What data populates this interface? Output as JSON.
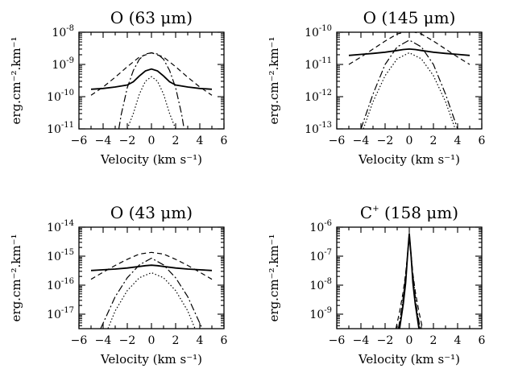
{
  "chart_data": [
    {
      "type": "line",
      "title_main": "O",
      "title_line": "(63 μm)",
      "ylabel": "erg.cm⁻².km⁻¹",
      "xlabel": "Velocity (km s⁻¹)",
      "xlim": [
        -6,
        6
      ],
      "ylog": true,
      "ylim_exp": [
        -11,
        -8
      ],
      "xticks": [
        -6,
        -4,
        -2,
        0,
        2,
        4,
        6
      ],
      "yticks": [
        {
          "b": "10",
          "e": "-8"
        },
        {
          "b": "10",
          "e": "-9"
        },
        {
          "b": "10",
          "e": "-10"
        },
        {
          "b": "10",
          "e": "-11"
        }
      ],
      "series": [
        {
          "style": "solid",
          "x": [
            -5,
            -4,
            -3,
            -2,
            -1.5,
            -1,
            -0.5,
            0,
            0.5,
            1,
            1.5,
            2,
            3,
            4,
            5
          ],
          "y": [
            1.7e-10,
            1.8e-10,
            2e-10,
            2.3e-10,
            2.9e-10,
            4.4e-10,
            6.3e-10,
            7.2e-10,
            6.3e-10,
            4.4e-10,
            2.9e-10,
            2.3e-10,
            2e-10,
            1.8e-10,
            1.7e-10
          ]
        },
        {
          "style": "dashed",
          "x": [
            -5,
            -4,
            -3,
            -2,
            -1,
            0,
            1,
            2,
            3,
            4,
            5
          ],
          "y": [
            1.1e-10,
            2e-10,
            4e-10,
            8.5e-10,
            1.7e-09,
            2.3e-09,
            1.7e-09,
            8.5e-10,
            4e-10,
            2e-10,
            1.1e-10
          ]
        },
        {
          "style": "dashdot",
          "x": [
            -2.7,
            -2.5,
            -2,
            -1.5,
            -1,
            -0.5,
            0,
            0.5,
            1,
            1.5,
            2,
            2.5,
            2.7
          ],
          "y": [
            1e-11,
            2.8e-11,
            1.9e-10,
            6.5e-10,
            1.45e-09,
            2.1e-09,
            2.3e-09,
            2.1e-09,
            1.45e-09,
            6.5e-10,
            1.9e-10,
            2.8e-11,
            1e-11
          ]
        },
        {
          "style": "dotted",
          "x": [
            -2,
            -1.5,
            -1,
            -0.5,
            0,
            0.5,
            1,
            1.5,
            2
          ],
          "y": [
            1e-11,
            3e-11,
            1.2e-10,
            3e-10,
            4.2e-10,
            3e-10,
            1.2e-10,
            3e-11,
            1e-11
          ]
        }
      ]
    },
    {
      "type": "line",
      "title_main": "O",
      "title_line": "(145 μm)",
      "ylabel": "erg.cm⁻².km⁻¹",
      "xlabel": "Velocity (km s⁻¹)",
      "xlim": [
        -6,
        6
      ],
      "ylog": true,
      "ylim_exp": [
        -13,
        -10
      ],
      "xticks": [
        -6,
        -4,
        -2,
        0,
        2,
        4,
        6
      ],
      "yticks": [
        {
          "b": "10",
          "e": "-10"
        },
        {
          "b": "10",
          "e": "-11"
        },
        {
          "b": "10",
          "e": "-12"
        },
        {
          "b": "10",
          "e": "-13"
        }
      ],
      "series": [
        {
          "style": "solid",
          "x": [
            -5,
            -4,
            -3,
            -2,
            -1,
            -0.5,
            0,
            0.5,
            1,
            2,
            3,
            4,
            5
          ],
          "y": [
            1.9e-11,
            2.05e-11,
            2.2e-11,
            2.4e-11,
            2.7e-11,
            2.9e-11,
            3e-11,
            2.9e-11,
            2.7e-11,
            2.4e-11,
            2.2e-11,
            2.05e-11,
            1.9e-11
          ]
        },
        {
          "style": "dashed",
          "x": [
            -5,
            -4,
            -3,
            -2,
            -1,
            0,
            1,
            2,
            3,
            4,
            5
          ],
          "y": [
            1e-11,
            1.7e-11,
            3e-11,
            5.3e-11,
            8.8e-11,
            1.1e-10,
            8.8e-11,
            5.3e-11,
            3e-11,
            1.7e-11,
            1e-11
          ]
        },
        {
          "style": "dashdot",
          "x": [
            -4,
            -3,
            -2,
            -1,
            0,
            1,
            2,
            3,
            4
          ],
          "y": [
            1e-13,
            1.2e-12,
            1e-11,
            3.5e-11,
            5.7e-11,
            3.5e-11,
            1e-11,
            1.2e-12,
            1e-13
          ]
        },
        {
          "style": "dotted",
          "x": [
            -3.8,
            -3,
            -2,
            -1,
            0,
            1,
            2,
            3,
            3.8
          ],
          "y": [
            1e-13,
            7e-13,
            4.5e-12,
            1.5e-11,
            2.3e-11,
            1.5e-11,
            4.5e-12,
            7e-13,
            1e-13
          ]
        }
      ]
    },
    {
      "type": "line",
      "title_main": "O",
      "title_line": "(43 μm)",
      "ylabel": "erg.cm⁻².km⁻¹",
      "xlabel": "Velocity (km s⁻¹)",
      "xlim": [
        -6,
        6
      ],
      "ylog": true,
      "ylim_exp": [
        -17.5,
        -14
      ],
      "xticks": [
        -6,
        -4,
        -2,
        0,
        2,
        4,
        6
      ],
      "yticks": [
        {
          "b": "10",
          "e": "-14"
        },
        {
          "b": "10",
          "e": "-15"
        },
        {
          "b": "10",
          "e": "-16"
        },
        {
          "b": "10",
          "e": "-17"
        }
      ],
      "series": [
        {
          "style": "solid",
          "x": [
            -5,
            -4,
            -3,
            -2,
            -1,
            -0.5,
            0,
            0.5,
            1,
            2,
            3,
            4,
            5
          ],
          "y": [
            3.2e-16,
            3.4e-16,
            3.6e-16,
            3.9e-16,
            4.4e-16,
            4.7e-16,
            4.9e-16,
            4.7e-16,
            4.4e-16,
            3.9e-16,
            3.6e-16,
            3.4e-16,
            3.2e-16
          ]
        },
        {
          "style": "dashed",
          "x": [
            -5,
            -4,
            -3,
            -2,
            -1,
            0,
            1,
            2,
            3,
            4,
            5
          ],
          "y": [
            1.6e-16,
            2.8e-16,
            4.8e-16,
            7.8e-16,
            1.18e-15,
            1.35e-15,
            1.18e-15,
            7.8e-16,
            4.8e-16,
            2.8e-16,
            1.6e-16
          ]
        },
        {
          "style": "dashdot",
          "x": [
            -4.2,
            -3,
            -2,
            -1,
            0,
            1,
            2,
            3,
            4.2
          ],
          "y": [
            3.2e-18,
            4e-17,
            1.8e-16,
            5e-16,
            8.5e-16,
            5e-16,
            1.8e-16,
            4e-17,
            3.2e-18
          ]
        },
        {
          "style": "dotted",
          "x": [
            -3.6,
            -3,
            -2,
            -1,
            0,
            1,
            2,
            3,
            3.6
          ],
          "y": [
            3.2e-18,
            1.3e-17,
            6.5e-17,
            1.8e-16,
            2.7e-16,
            1.8e-16,
            6.5e-17,
            1.3e-17,
            3.2e-18
          ]
        }
      ]
    },
    {
      "type": "line",
      "title_main": "C",
      "title_sup": "+",
      "title_line": "(158 μm)",
      "ylabel": "erg.cm⁻².km⁻¹",
      "xlabel": "Velocity (km s⁻¹)",
      "xlim": [
        -6,
        6
      ],
      "ylog": true,
      "ylim_exp": [
        -9.5,
        -6
      ],
      "xticks": [
        -6,
        -4,
        -2,
        0,
        2,
        4,
        6
      ],
      "yticks": [
        {
          "b": "10",
          "e": "-6"
        },
        {
          "b": "10",
          "e": "-7"
        },
        {
          "b": "10",
          "e": "-8"
        },
        {
          "b": "10",
          "e": "-9"
        }
      ],
      "series": [
        {
          "style": "solid",
          "x": [
            -0.8,
            -0.5,
            -0.3,
            -0.15,
            0,
            0.15,
            0.3,
            0.5,
            0.8
          ],
          "y": [
            3.2e-10,
            2.2e-09,
            1.2e-08,
            1e-07,
            6e-07,
            1e-07,
            1.2e-08,
            2.2e-09,
            3.2e-10
          ]
        },
        {
          "style": "dashed",
          "x": [
            -1.1,
            -0.8,
            -0.5,
            -0.3,
            -0.15,
            0,
            0.15,
            0.3,
            0.5,
            0.8,
            1.1
          ],
          "y": [
            3.2e-10,
            1.2e-09,
            6e-09,
            2.5e-08,
            1.1e-07,
            6.3e-07,
            1.1e-07,
            2.5e-08,
            6e-09,
            1.2e-09,
            3.2e-10
          ]
        },
        {
          "style": "dashdot",
          "x": [
            -0.9,
            -0.6,
            -0.4,
            -0.2,
            0,
            0.2,
            0.4,
            0.6,
            0.9
          ],
          "y": [
            3.2e-10,
            1.8e-09,
            9e-09,
            6e-08,
            5.5e-07,
            6e-08,
            9e-09,
            1.8e-09,
            3.2e-10
          ]
        },
        {
          "style": "dotted",
          "x": [
            -0.85,
            -0.6,
            -0.4,
            -0.2,
            0,
            0.2,
            0.4,
            0.6,
            0.85
          ],
          "y": [
            3.2e-10,
            1.5e-09,
            8e-09,
            5e-08,
            5e-07,
            5e-08,
            8e-09,
            1.5e-09,
            3.2e-10
          ]
        }
      ]
    }
  ]
}
